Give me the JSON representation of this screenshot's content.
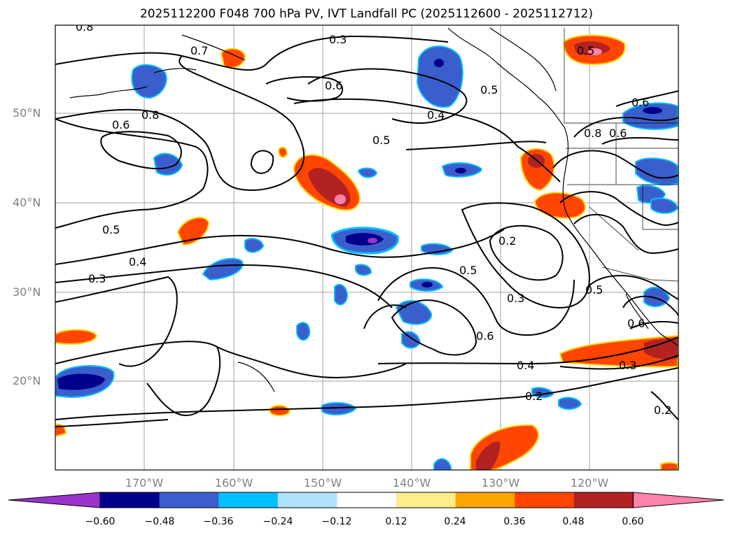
{
  "title": "2025112200 F048 700 hPa PV, IVT Landfall PC (2025112600 - 2025112712)",
  "lat_labels": [
    "50°N",
    "40°N",
    "30°N",
    "20°N"
  ],
  "lon_labels": [
    "170°W",
    "160°W",
    "150°W",
    "140°W",
    "130°W",
    "120°W"
  ],
  "contour_labels": [
    "0.8",
    "0.3",
    "0.7",
    "0.6",
    "0.5",
    "0.4",
    "0.8",
    "0.6",
    "0.5",
    "0.4",
    "0.3",
    "0.2",
    "0.5",
    "0.3",
    "0.6",
    "0.4",
    "0.2",
    "0.5",
    "0.6",
    "0.3",
    "0.6",
    "0.8",
    "0.6",
    "0.5",
    "0.2",
    "0.5"
  ],
  "colorbar": {
    "ticks": [
      "−0.60",
      "−0.48",
      "−0.36",
      "−0.24",
      "−0.12",
      "0.12",
      "0.24",
      "0.36",
      "0.48",
      "0.60"
    ],
    "colors": [
      "#9932cc",
      "#00008b",
      "#3a5fcd",
      "#00bfff",
      "#b0e2ff",
      "#ffffff",
      "#ffec8b",
      "#ffa500",
      "#ff4500",
      "#b22222",
      "#ff82ab"
    ]
  }
}
